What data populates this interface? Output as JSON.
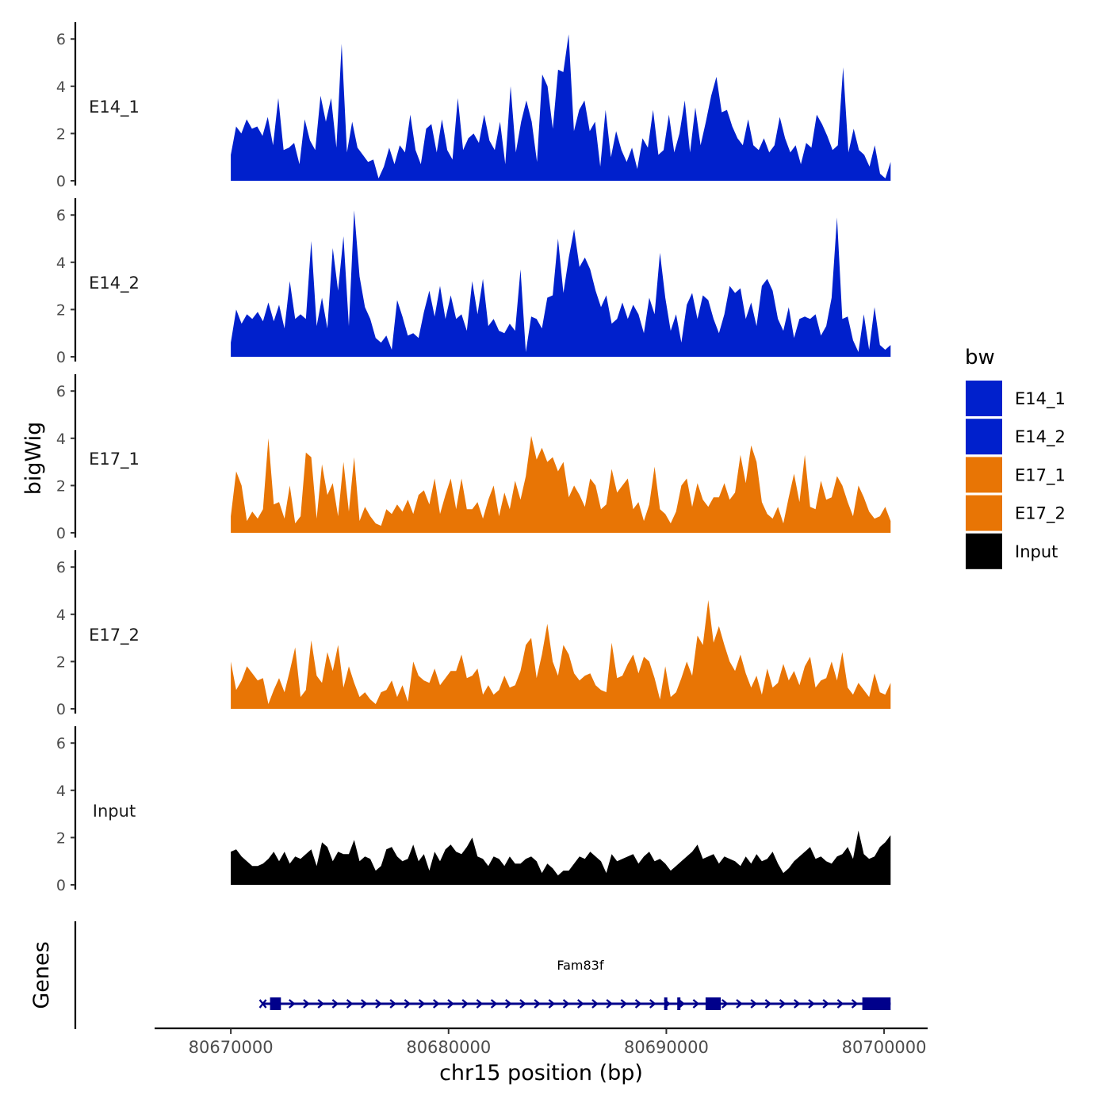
{
  "chart_data": {
    "type": "area",
    "ylabel": "bigWig",
    "xlabel": "chr15 position (bp)",
    "xlim": [
      80666500,
      80702000
    ],
    "ylim": [
      0,
      6.5
    ],
    "y_ticks": [
      0,
      2,
      4,
      6
    ],
    "x_ticks": [
      80670000,
      80680000,
      80690000,
      80700000
    ],
    "x_tick_labels": [
      "80670000",
      "80680000",
      "80690000",
      "80700000"
    ],
    "legend": {
      "title": "bw",
      "position": "right",
      "entries": [
        {
          "label": "E14_1",
          "color": "#0020CC"
        },
        {
          "label": "E14_2",
          "color": "#0020CC"
        },
        {
          "label": "E17_1",
          "color": "#E87505"
        },
        {
          "label": "E17_2",
          "color": "#E87505"
        },
        {
          "label": "Input",
          "color": "#000000"
        }
      ]
    },
    "series": [
      {
        "name": "E14_1",
        "color": "#0020CC",
        "x_start": 80670000,
        "x_end": 80700300,
        "values": [
          1.1,
          2.3,
          2.0,
          2.6,
          2.2,
          2.3,
          1.9,
          2.7,
          1.5,
          3.5,
          1.3,
          1.4,
          1.6,
          0.7,
          2.6,
          1.7,
          1.3,
          3.6,
          2.5,
          3.5,
          1.4,
          5.8,
          1.2,
          2.5,
          1.4,
          1.1,
          0.8,
          0.9,
          0.1,
          0.6,
          1.4,
          0.7,
          1.5,
          1.2,
          2.8,
          1.3,
          0.7,
          2.2,
          2.4,
          1.2,
          2.6,
          1.3,
          0.9,
          3.5,
          1.3,
          1.8,
          2.0,
          1.6,
          2.8,
          1.7,
          1.3,
          2.5,
          0.7,
          4.0,
          1.2,
          2.5,
          3.4,
          2.5,
          0.8,
          4.5,
          4.0,
          2.2,
          4.7,
          4.6,
          6.2,
          2.1,
          3.0,
          3.4,
          2.1,
          2.5,
          0.6,
          3.0,
          1.0,
          2.1,
          1.3,
          0.8,
          1.4,
          0.5,
          1.8,
          1.4,
          3.0,
          1.1,
          1.3,
          2.8,
          1.2,
          2.0,
          3.4,
          1.2,
          3.1,
          1.5,
          2.5,
          3.6,
          4.4,
          2.9,
          3.0,
          2.3,
          1.8,
          1.5,
          2.6,
          1.5,
          1.3,
          1.8,
          1.2,
          1.5,
          2.7,
          1.8,
          1.2,
          1.5,
          0.7,
          1.6,
          1.4,
          2.8,
          2.4,
          1.9,
          1.3,
          1.5,
          4.8,
          1.2,
          2.2,
          1.3,
          1.1,
          0.6,
          1.5,
          0.3,
          0.1,
          0.8
        ]
      },
      {
        "name": "E14_2",
        "color": "#0020CC",
        "x_start": 80670000,
        "x_end": 80700300,
        "values": [
          0.6,
          2.0,
          1.4,
          1.8,
          1.6,
          1.9,
          1.5,
          2.3,
          1.5,
          2.2,
          1.2,
          3.2,
          1.6,
          1.8,
          1.6,
          4.9,
          1.3,
          2.5,
          1.2,
          4.6,
          2.8,
          5.1,
          1.3,
          6.2,
          3.4,
          2.1,
          1.6,
          0.8,
          0.6,
          0.9,
          0.3,
          2.4,
          1.7,
          0.9,
          1.0,
          0.8,
          1.9,
          2.8,
          1.7,
          3.0,
          1.6,
          2.6,
          1.6,
          1.8,
          1.1,
          3.2,
          1.8,
          3.3,
          1.3,
          1.6,
          1.1,
          1.0,
          1.4,
          1.1,
          3.7,
          0.2,
          1.7,
          1.6,
          1.2,
          2.5,
          2.6,
          5.0,
          2.7,
          4.2,
          5.4,
          3.8,
          4.2,
          3.7,
          2.8,
          2.1,
          2.6,
          1.4,
          1.6,
          2.3,
          1.6,
          2.2,
          1.8,
          1.0,
          2.5,
          1.8,
          4.4,
          2.5,
          1.1,
          1.8,
          0.6,
          2.2,
          2.7,
          1.6,
          2.6,
          2.4,
          1.6,
          1.0,
          1.8,
          3.0,
          2.7,
          2.9,
          1.6,
          2.3,
          1.3,
          3.0,
          3.3,
          2.8,
          1.6,
          1.1,
          2.1,
          0.8,
          1.6,
          1.7,
          1.6,
          1.8,
          0.9,
          1.3,
          2.5,
          5.9,
          1.6,
          1.7,
          0.7,
          0.2,
          1.8,
          0.3,
          2.1,
          0.5,
          0.3,
          0.5
        ]
      },
      {
        "name": "E17_1",
        "color": "#E87505",
        "x_start": 80670000,
        "x_end": 80700300,
        "values": [
          0.7,
          2.6,
          2.0,
          0.5,
          0.9,
          0.6,
          1.0,
          4.0,
          1.2,
          1.3,
          0.6,
          2.0,
          0.4,
          0.7,
          3.4,
          3.2,
          0.6,
          2.9,
          1.6,
          2.1,
          0.7,
          3.0,
          0.9,
          3.2,
          0.5,
          1.1,
          0.7,
          0.4,
          0.3,
          1.0,
          0.8,
          1.2,
          0.9,
          1.4,
          0.8,
          1.6,
          1.8,
          1.2,
          2.3,
          0.8,
          1.6,
          2.3,
          1.0,
          2.3,
          1.0,
          1.0,
          1.3,
          0.6,
          1.4,
          2.0,
          0.7,
          1.7,
          1.0,
          2.2,
          1.4,
          2.4,
          4.1,
          3.1,
          3.6,
          3.0,
          3.2,
          2.6,
          3.0,
          1.5,
          2.0,
          1.6,
          1.1,
          2.3,
          2.0,
          1.0,
          1.2,
          2.7,
          1.7,
          2.0,
          2.3,
          1.0,
          1.3,
          0.5,
          1.2,
          2.8,
          1.0,
          0.8,
          0.4,
          0.9,
          2.0,
          2.3,
          1.1,
          2.1,
          1.4,
          1.1,
          1.5,
          1.5,
          2.1,
          1.4,
          1.7,
          3.3,
          2.1,
          3.7,
          3.0,
          1.3,
          0.8,
          0.6,
          1.1,
          0.4,
          1.5,
          2.5,
          1.3,
          3.3,
          1.1,
          1.0,
          2.2,
          1.4,
          1.5,
          2.4,
          2.0,
          1.3,
          0.7,
          2.0,
          1.5,
          0.9,
          0.6,
          0.7,
          1.1,
          0.5
        ]
      },
      {
        "name": "E17_2",
        "color": "#E87505",
        "x_start": 80670000,
        "x_end": 80700300,
        "values": [
          2.0,
          0.8,
          1.2,
          1.8,
          1.5,
          1.2,
          1.3,
          0.2,
          0.8,
          1.3,
          0.7,
          1.6,
          2.6,
          0.5,
          0.8,
          2.9,
          1.4,
          1.1,
          2.4,
          1.6,
          2.7,
          0.9,
          1.8,
          1.1,
          0.5,
          0.7,
          0.4,
          0.2,
          0.7,
          0.8,
          1.2,
          0.5,
          1.0,
          0.3,
          2.0,
          1.4,
          1.2,
          1.1,
          1.7,
          1.0,
          1.3,
          1.6,
          1.6,
          2.3,
          1.3,
          1.4,
          1.7,
          0.6,
          1.0,
          0.6,
          0.8,
          1.4,
          0.9,
          1.0,
          1.6,
          2.7,
          3.0,
          1.3,
          2.3,
          3.6,
          2.0,
          1.4,
          2.7,
          2.3,
          1.5,
          1.2,
          1.4,
          1.5,
          1.0,
          0.8,
          0.7,
          2.8,
          1.3,
          1.4,
          1.9,
          2.3,
          1.5,
          2.2,
          2.0,
          1.3,
          0.4,
          1.8,
          0.5,
          0.7,
          1.3,
          2.0,
          1.4,
          3.1,
          2.7,
          4.6,
          2.8,
          3.5,
          2.7,
          2.0,
          1.6,
          2.3,
          1.5,
          0.9,
          1.4,
          0.6,
          1.7,
          0.9,
          1.1,
          1.9,
          1.2,
          1.6,
          1.0,
          1.8,
          2.2,
          0.9,
          1.2,
          1.3,
          2.0,
          1.2,
          2.4,
          0.9,
          0.6,
          1.1,
          0.8,
          0.5,
          1.5,
          0.7,
          0.6,
          1.1
        ]
      },
      {
        "name": "Input",
        "color": "#000000",
        "x_start": 80670000,
        "x_end": 80700300,
        "values": [
          1.4,
          1.5,
          1.2,
          1.0,
          0.8,
          0.8,
          0.9,
          1.1,
          1.4,
          1.0,
          1.4,
          0.9,
          1.2,
          1.1,
          1.3,
          1.5,
          0.8,
          1.8,
          1.6,
          1.0,
          1.4,
          1.3,
          1.3,
          1.9,
          1.0,
          1.2,
          1.1,
          0.6,
          0.8,
          1.5,
          1.6,
          1.2,
          1.0,
          1.1,
          1.7,
          1.0,
          1.3,
          0.6,
          1.4,
          1.0,
          1.5,
          1.7,
          1.4,
          1.3,
          1.6,
          2.0,
          1.2,
          1.1,
          0.8,
          1.2,
          1.1,
          0.8,
          1.2,
          0.9,
          0.9,
          1.1,
          1.2,
          1.0,
          0.5,
          0.9,
          0.7,
          0.4,
          0.6,
          0.6,
          0.9,
          1.2,
          1.1,
          1.4,
          1.2,
          1.0,
          0.5,
          1.3,
          1.0,
          1.1,
          1.2,
          1.3,
          0.9,
          1.2,
          1.4,
          1.0,
          1.1,
          0.9,
          0.6,
          0.8,
          1.0,
          1.2,
          1.4,
          1.7,
          1.1,
          1.2,
          1.3,
          0.9,
          1.2,
          1.1,
          1.0,
          0.8,
          1.2,
          0.9,
          1.3,
          1.0,
          1.1,
          1.4,
          0.9,
          0.5,
          0.7,
          1.0,
          1.2,
          1.4,
          1.6,
          1.1,
          1.2,
          1.0,
          0.9,
          1.2,
          1.3,
          1.6,
          1.1,
          2.3,
          1.3,
          1.1,
          1.2,
          1.6,
          1.8,
          2.1
        ]
      }
    ],
    "genes_track": {
      "label": "Genes",
      "gene_name": "Fam83f",
      "strand": "+",
      "start": 80671800,
      "end": 80700300,
      "exons": [
        [
          80671800,
          80672300
        ],
        [
          80689900,
          80690000
        ],
        [
          80690500,
          80690600
        ],
        [
          80691800,
          80692500
        ],
        [
          80699000,
          80700300
        ]
      ]
    }
  }
}
